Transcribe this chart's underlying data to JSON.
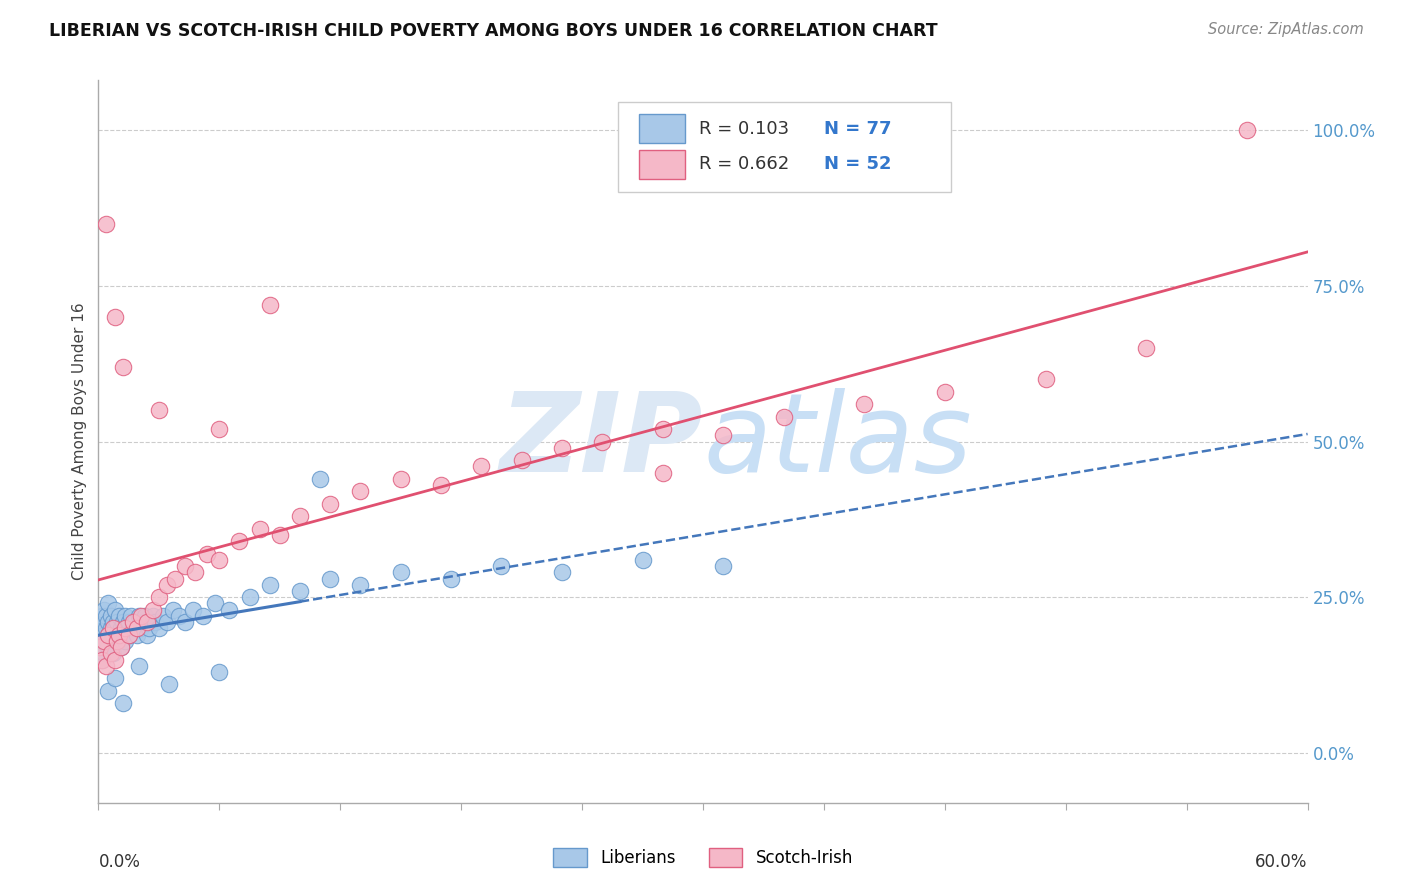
{
  "title": "LIBERIAN VS SCOTCH-IRISH CHILD POVERTY AMONG BOYS UNDER 16 CORRELATION CHART",
  "source": "Source: ZipAtlas.com",
  "ylabel": "Child Poverty Among Boys Under 16",
  "right_yticks": [
    0.0,
    0.25,
    0.5,
    0.75,
    1.0
  ],
  "right_yticklabels": [
    "0.0%",
    "25.0%",
    "50.0%",
    "75.0%",
    "100.0%"
  ],
  "xmin": 0.0,
  "xmax": 0.6,
  "ymin": -0.08,
  "ymax": 1.08,
  "liberian_R": 0.103,
  "liberian_N": 77,
  "scotch_irish_R": 0.662,
  "scotch_irish_N": 52,
  "liberian_color": "#a8c8e8",
  "scotch_irish_color": "#f5b8c8",
  "liberian_edge_color": "#6699cc",
  "scotch_irish_edge_color": "#e06080",
  "liberian_line_color": "#4477bb",
  "scotch_irish_line_color": "#e05070",
  "watermark_color": "#ddeeff",
  "legend_label_1": "Liberians",
  "legend_label_2": "Scotch-Irish",
  "liberian_x": [
    0.001,
    0.001,
    0.002,
    0.002,
    0.002,
    0.003,
    0.003,
    0.003,
    0.003,
    0.004,
    0.004,
    0.004,
    0.005,
    0.005,
    0.005,
    0.005,
    0.006,
    0.006,
    0.006,
    0.007,
    0.007,
    0.007,
    0.008,
    0.008,
    0.009,
    0.009,
    0.01,
    0.01,
    0.011,
    0.011,
    0.012,
    0.012,
    0.013,
    0.013,
    0.014,
    0.015,
    0.015,
    0.016,
    0.017,
    0.018,
    0.019,
    0.02,
    0.021,
    0.022,
    0.023,
    0.024,
    0.025,
    0.027,
    0.028,
    0.03,
    0.032,
    0.034,
    0.037,
    0.04,
    0.043,
    0.047,
    0.052,
    0.058,
    0.065,
    0.075,
    0.085,
    0.1,
    0.115,
    0.13,
    0.15,
    0.175,
    0.2,
    0.23,
    0.27,
    0.31,
    0.005,
    0.008,
    0.012,
    0.02,
    0.035,
    0.06,
    0.11
  ],
  "liberian_y": [
    0.2,
    0.17,
    0.22,
    0.15,
    0.18,
    0.21,
    0.16,
    0.23,
    0.19,
    0.2,
    0.18,
    0.22,
    0.17,
    0.21,
    0.19,
    0.24,
    0.2,
    0.18,
    0.22,
    0.19,
    0.21,
    0.16,
    0.2,
    0.23,
    0.18,
    0.21,
    0.19,
    0.22,
    0.2,
    0.17,
    0.21,
    0.19,
    0.22,
    0.18,
    0.2,
    0.21,
    0.19,
    0.22,
    0.2,
    0.21,
    0.19,
    0.22,
    0.2,
    0.21,
    0.22,
    0.19,
    0.2,
    0.22,
    0.21,
    0.2,
    0.22,
    0.21,
    0.23,
    0.22,
    0.21,
    0.23,
    0.22,
    0.24,
    0.23,
    0.25,
    0.27,
    0.26,
    0.28,
    0.27,
    0.29,
    0.28,
    0.3,
    0.29,
    0.31,
    0.3,
    0.1,
    0.12,
    0.08,
    0.14,
    0.11,
    0.13,
    0.44
  ],
  "scotch_irish_x": [
    0.001,
    0.002,
    0.003,
    0.004,
    0.005,
    0.006,
    0.007,
    0.008,
    0.009,
    0.01,
    0.011,
    0.013,
    0.015,
    0.017,
    0.019,
    0.021,
    0.024,
    0.027,
    0.03,
    0.034,
    0.038,
    0.043,
    0.048,
    0.054,
    0.06,
    0.07,
    0.08,
    0.09,
    0.1,
    0.115,
    0.13,
    0.15,
    0.17,
    0.19,
    0.21,
    0.23,
    0.25,
    0.28,
    0.31,
    0.34,
    0.38,
    0.42,
    0.47,
    0.52,
    0.57,
    0.004,
    0.008,
    0.012,
    0.03,
    0.06,
    0.085,
    0.28
  ],
  "scotch_irish_y": [
    0.17,
    0.15,
    0.18,
    0.14,
    0.19,
    0.16,
    0.2,
    0.15,
    0.18,
    0.19,
    0.17,
    0.2,
    0.19,
    0.21,
    0.2,
    0.22,
    0.21,
    0.23,
    0.25,
    0.27,
    0.28,
    0.3,
    0.29,
    0.32,
    0.31,
    0.34,
    0.36,
    0.35,
    0.38,
    0.4,
    0.42,
    0.44,
    0.43,
    0.46,
    0.47,
    0.49,
    0.5,
    0.52,
    0.51,
    0.54,
    0.56,
    0.58,
    0.6,
    0.65,
    1.0,
    0.85,
    0.7,
    0.62,
    0.55,
    0.52,
    0.72,
    0.45
  ]
}
